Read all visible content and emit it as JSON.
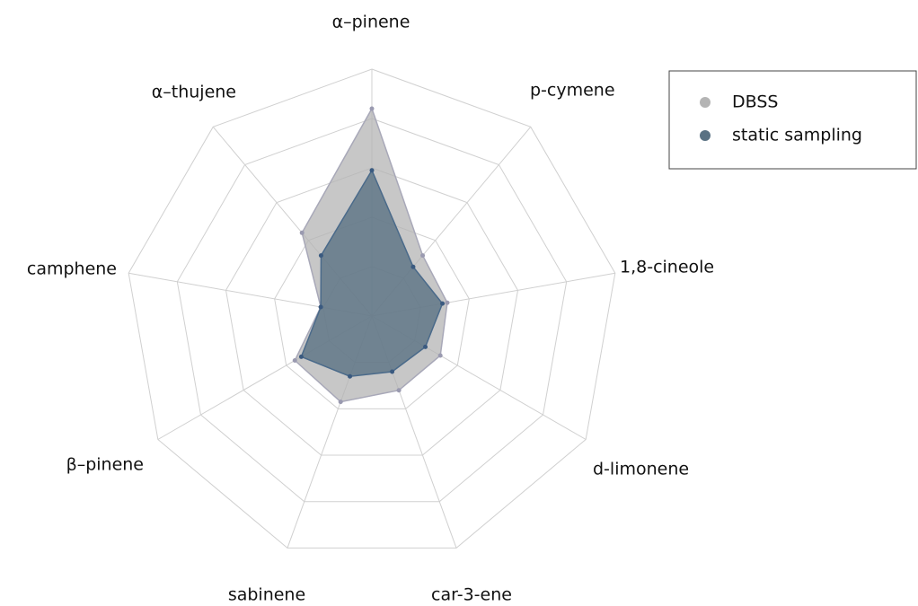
{
  "chart_data": {
    "type": "radar",
    "categories": [
      "α–pinene",
      "p-cymene",
      "1,8-cineole",
      "d-limonene",
      "car-3-ene",
      "sabinene",
      "β–pinene",
      "camphene",
      "α–thujene"
    ],
    "series": [
      {
        "name": "DBSS",
        "color": "#b4b4b4",
        "values": [
          4.2,
          1.6,
          1.55,
          1.6,
          1.6,
          1.85,
          1.8,
          1.05,
          2.2
        ]
      },
      {
        "name": "static sampling",
        "color": "#5a7283",
        "values": [
          2.95,
          1.3,
          1.45,
          1.25,
          1.2,
          1.3,
          1.65,
          1.05,
          1.6
        ]
      }
    ],
    "ylim": [
      0,
      5
    ],
    "yticks": [
      1,
      2,
      3,
      4,
      5
    ],
    "grid": true,
    "legend": "upper right"
  }
}
